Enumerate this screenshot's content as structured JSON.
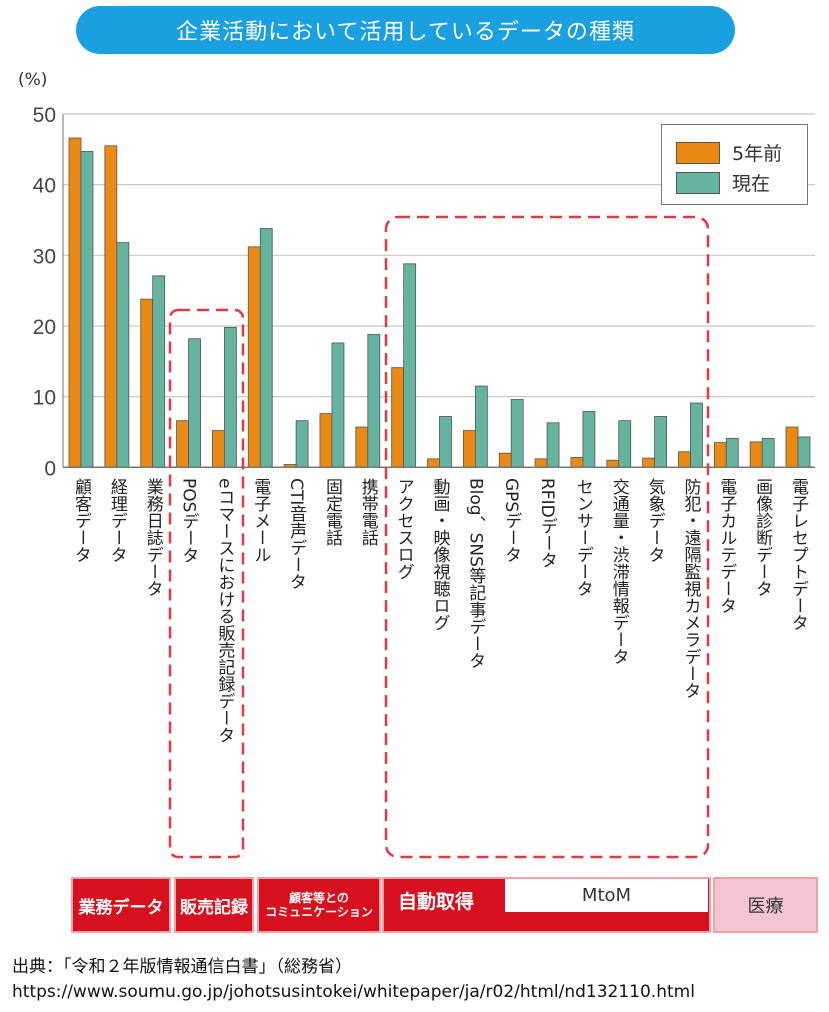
{
  "title": "企業活動において活用しているデータの種類",
  "chart_data": {
    "type": "bar",
    "unit_label": "(%)",
    "ylim": [
      0,
      50
    ],
    "yticks": [
      0,
      10,
      20,
      30,
      40,
      50
    ],
    "grid": true,
    "legend_position": "top-right",
    "categories": [
      "顧客データ",
      "経理データ",
      "業務日誌データ",
      "POSデータ",
      "eコマースにおける販売記録データ",
      "電子メール",
      "CTI音声データ",
      "固定電話",
      "携帯電話",
      "アクセスログ",
      "動画・映像視聴ログ",
      "Blog、SNS等記事データ",
      "GPSデータ",
      "RFIDデータ",
      "センサーデータ",
      "交通量・渋滞情報データ",
      "気象データ",
      "防犯・遠隔監視カメラデータ",
      "電子カルテデータ",
      "画像診断データ",
      "電子レセプトデータ"
    ],
    "series": [
      {
        "name": "5年前",
        "color": "#ea8a14",
        "values": [
          46.6,
          45.5,
          23.8,
          6.6,
          5.2,
          31.2,
          0.4,
          7.6,
          5.7,
          14.1,
          1.2,
          5.2,
          2.0,
          1.2,
          1.4,
          1.0,
          1.3,
          2.2,
          3.5,
          3.6,
          5.7
        ]
      },
      {
        "name": "現在",
        "color": "#66b3a0",
        "values": [
          44.7,
          31.8,
          27.1,
          18.2,
          19.8,
          33.8,
          6.6,
          17.6,
          18.8,
          28.8,
          7.2,
          11.5,
          9.6,
          6.3,
          7.9,
          6.6,
          7.2,
          9.1,
          4.1,
          4.1,
          4.3
        ]
      }
    ],
    "highlight_color": "#e03a44"
  },
  "groups": [
    {
      "label": "業務データ",
      "color": "#d7101e"
    },
    {
      "label": "販売記録",
      "color": "#d7101e"
    },
    {
      "label": "顧客等との\nコミュニケーション",
      "color": "#d7101e"
    },
    {
      "label": "自動取得",
      "color": "#d7101e"
    },
    {
      "label": "医療",
      "color": "#f2c4d4"
    }
  ],
  "mtom_label": "MtoM",
  "source": {
    "line1": "出典：「令和２年版情報通信白書」（総務省）",
    "line2": "https://www.soumu.go.jp/johotsusintokei/whitepaper/ja/r02/html/nd132110.html"
  }
}
